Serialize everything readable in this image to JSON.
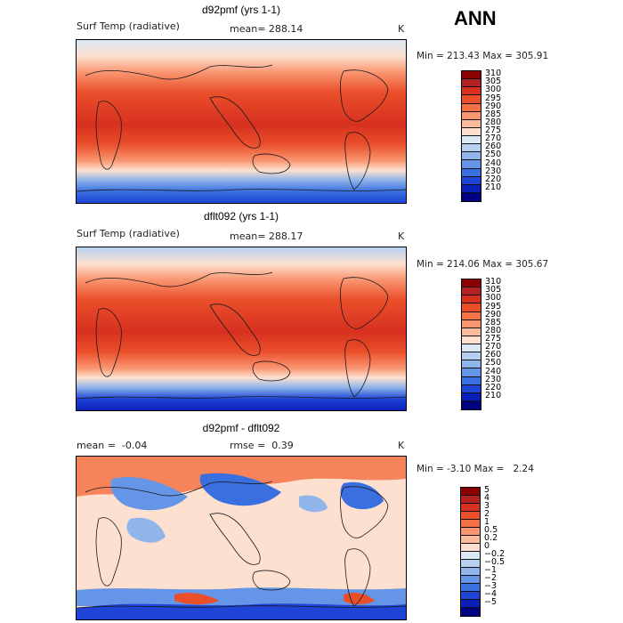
{
  "season": "ANN",
  "chart_data": [
    {
      "type": "heatmap",
      "title": "d92pmf (yrs 1-1)",
      "variable": "Surf Temp (radiative)",
      "mean_label": "mean=",
      "mean_value": "288.14",
      "units": "K",
      "min_label": "Min =",
      "min_value": "213.43",
      "max_label": "Max =",
      "max_value": "305.91",
      "levels": [
        "310",
        "305",
        "300",
        "295",
        "290",
        "285",
        "280",
        "275",
        "270",
        "260",
        "250",
        "240",
        "230",
        "220",
        "210"
      ],
      "colors": [
        "#8b0000",
        "#b22222",
        "#d7301f",
        "#ea4f2a",
        "#f47245",
        "#f99570",
        "#fcbb9a",
        "#fde0cf",
        "#dbe8f6",
        "#b7d0f0",
        "#8fb5ea",
        "#6495e6",
        "#3a6fe0",
        "#1f45d6",
        "#0a1fb8",
        "#000080"
      ]
    },
    {
      "type": "heatmap",
      "title": "dflt092 (yrs 1-1)",
      "variable": "Surf Temp (radiative)",
      "mean_label": "mean=",
      "mean_value": "288.17",
      "units": "K",
      "min_label": "Min =",
      "min_value": "214.06",
      "max_label": "Max =",
      "max_value": "305.67",
      "levels": [
        "310",
        "305",
        "300",
        "295",
        "290",
        "285",
        "280",
        "275",
        "270",
        "260",
        "250",
        "240",
        "230",
        "220",
        "210"
      ],
      "colors": [
        "#8b0000",
        "#b22222",
        "#d7301f",
        "#ea4f2a",
        "#f47245",
        "#f99570",
        "#fcbb9a",
        "#fde0cf",
        "#dbe8f6",
        "#b7d0f0",
        "#8fb5ea",
        "#6495e6",
        "#3a6fe0",
        "#1f45d6",
        "#0a1fb8",
        "#000080"
      ]
    },
    {
      "type": "heatmap",
      "title": "d92pmf - dflt092",
      "mean_label": "mean =",
      "mean_value": "-0.04",
      "rmse_label": "rmse =",
      "rmse_value": "0.39",
      "units": "K",
      "min_label": "Min =",
      "min_value": "-3.10",
      "max_label": "Max =",
      "max_value": "2.24",
      "levels": [
        "5",
        "4",
        "3",
        "2",
        "1",
        "0.5",
        "0.2",
        "0",
        "-0.2",
        "-0.5",
        "-1",
        "-2",
        "-3",
        "-4",
        "-5"
      ],
      "colors": [
        "#8b0000",
        "#b22222",
        "#d7301f",
        "#ea4f2a",
        "#f47245",
        "#f99570",
        "#fcbb9a",
        "#fde0cf",
        "#dbe8f6",
        "#b7d0f0",
        "#8fb5ea",
        "#6495e6",
        "#3a6fe0",
        "#1f45d6",
        "#0a1fb8",
        "#000080"
      ]
    }
  ]
}
